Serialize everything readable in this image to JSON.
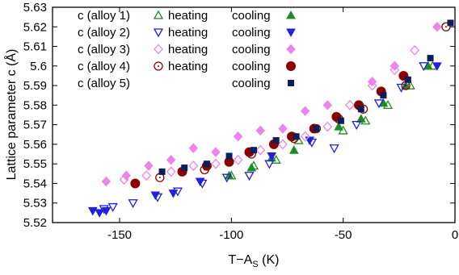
{
  "chart_data": {
    "type": "scatter",
    "xlabel": "T−A",
    "xlabel_sub": "S",
    "xlabel_unit": " (K)",
    "ylabel": "Lattice parameter c (Å)",
    "xlim": [
      -180,
      0
    ],
    "ylim": [
      5.52,
      5.63
    ],
    "xticks": [
      -150,
      -100,
      -50,
      0
    ],
    "yticks": [
      5.52,
      5.53,
      5.54,
      5.55,
      5.56,
      5.57,
      5.58,
      5.59,
      5.6,
      5.61,
      5.62,
      5.63
    ],
    "ytick_labels": [
      "5.52",
      "5.53",
      "5.54",
      "5.55",
      "5.56",
      "5.57",
      "5.58",
      "5.59",
      "5.6",
      "5.61",
      "5.62",
      "5.63"
    ],
    "grid": false,
    "legend_position": "top-left",
    "legend": [
      {
        "label": "c (alloy 1)",
        "heating": "heating",
        "cooling": "cooling"
      },
      {
        "label": "c (alloy 2)",
        "heating": "heating",
        "cooling": "cooling"
      },
      {
        "label": "c (alloy 3)",
        "heating": "heating",
        "cooling": "cooling"
      },
      {
        "label": "c (alloy 4)",
        "heating": "heating",
        "cooling": "cooling"
      },
      {
        "label": "c (alloy 5)",
        "heating": "",
        "cooling": "cooling"
      }
    ],
    "series": [
      {
        "name": "c (alloy 1) heating",
        "marker": "triangle-up",
        "filled": false,
        "color": "#1f8c1f",
        "points": [
          [
            -10,
            5.6
          ],
          [
            -20,
            5.59
          ],
          [
            -30,
            5.58
          ],
          [
            -40,
            5.572
          ],
          [
            -50,
            5.567
          ],
          [
            -70,
            5.562
          ],
          [
            -80,
            5.552
          ],
          [
            -90,
            5.549
          ],
          [
            -100,
            5.544
          ]
        ]
      },
      {
        "name": "c (alloy 1) cooling",
        "marker": "triangle-up",
        "filled": true,
        "color": "#1f8c1f",
        "points": [
          [
            -12,
            5.6
          ],
          [
            -22,
            5.59
          ],
          [
            -32,
            5.581
          ],
          [
            -42,
            5.573
          ],
          [
            -52,
            5.569
          ],
          [
            -72,
            5.557
          ],
          [
            -82,
            5.553
          ],
          [
            -91,
            5.548
          ],
          [
            -101,
            5.544
          ]
        ]
      },
      {
        "name": "c (alloy 2) heating",
        "marker": "triangle-down",
        "filled": false,
        "color": "#1f1fe0",
        "points": [
          [
            -14,
            5.6
          ],
          [
            -24,
            5.589
          ],
          [
            -34,
            5.581
          ],
          [
            -44,
            5.57
          ],
          [
            -54,
            5.558
          ],
          [
            -64,
            5.561
          ],
          [
            -83,
            5.55
          ],
          [
            -92,
            5.544
          ],
          [
            -102,
            5.543
          ],
          [
            -113,
            5.54
          ],
          [
            -124,
            5.536
          ],
          [
            -133,
            5.533
          ],
          [
            -144,
            5.53
          ],
          [
            -153,
            5.528
          ],
          [
            -157,
            5.527
          ]
        ]
      },
      {
        "name": "c (alloy 2) cooling",
        "marker": "triangle-down",
        "filled": true,
        "color": "#1f1fe0",
        "points": [
          [
            -8,
            5.6
          ],
          [
            -65,
            5.562
          ],
          [
            -82,
            5.554
          ],
          [
            -114,
            5.541
          ],
          [
            -126,
            5.535
          ],
          [
            -134,
            5.534
          ],
          [
            -156,
            5.526
          ],
          [
            -159,
            5.525
          ],
          [
            -162,
            5.526
          ]
        ]
      },
      {
        "name": "c (alloy 3) heating",
        "marker": "diamond",
        "filled": false,
        "color": "#ee82ee",
        "points": [
          [
            -18,
            5.608
          ],
          [
            -27,
            5.598
          ],
          [
            -37,
            5.59
          ],
          [
            -47,
            5.58
          ],
          [
            -57,
            5.569
          ],
          [
            -67,
            5.564
          ],
          [
            -77,
            5.56
          ],
          [
            -87,
            5.557
          ],
          [
            -97,
            5.552
          ],
          [
            -107,
            5.55
          ],
          [
            -117,
            5.549
          ],
          [
            -127,
            5.546
          ],
          [
            -138,
            5.544
          ],
          [
            -148,
            5.542
          ]
        ]
      },
      {
        "name": "c (alloy 3) cooling",
        "marker": "diamond",
        "filled": true,
        "color": "#ee82ee",
        "points": [
          [
            -8,
            5.62
          ],
          [
            -27,
            5.6
          ],
          [
            -37,
            5.592
          ],
          [
            -57,
            5.58
          ],
          [
            -67,
            5.577
          ],
          [
            -77,
            5.568
          ],
          [
            -87,
            5.567
          ],
          [
            -97,
            5.564
          ],
          [
            -107,
            5.556
          ],
          [
            -117,
            5.558
          ],
          [
            -127,
            5.552
          ],
          [
            -137,
            5.549
          ],
          [
            -147,
            5.544
          ],
          [
            -156,
            5.541
          ]
        ]
      },
      {
        "name": "c (alloy 4) heating",
        "marker": "circle",
        "filled": false,
        "color": "#8b0000",
        "points": [
          [
            -4,
            5.62
          ],
          [
            -22,
            5.59
          ],
          [
            -41,
            5.578
          ],
          [
            -52,
            5.573
          ],
          [
            -62,
            5.568
          ],
          [
            -72,
            5.563
          ],
          [
            -91,
            5.555
          ],
          [
            -112,
            5.547
          ],
          [
            -132,
            5.543
          ]
        ]
      },
      {
        "name": "c (alloy 4) cooling",
        "marker": "circle",
        "filled": true,
        "color": "#8b0000",
        "points": [
          [
            -23,
            5.595
          ],
          [
            -33,
            5.587
          ],
          [
            -43,
            5.58
          ],
          [
            -53,
            5.574
          ],
          [
            -63,
            5.568
          ],
          [
            -73,
            5.564
          ],
          [
            -81,
            5.56
          ],
          [
            -92,
            5.556
          ],
          [
            -101,
            5.551
          ],
          [
            -111,
            5.549
          ],
          [
            -122,
            5.546
          ],
          [
            -143,
            5.54
          ]
        ]
      },
      {
        "name": "c (alloy 5) cooling",
        "marker": "square",
        "filled": true,
        "color": "#0a1f5c",
        "points": [
          [
            -2,
            5.622
          ],
          [
            -11,
            5.604
          ],
          [
            -21,
            5.593
          ],
          [
            -32,
            5.585
          ],
          [
            -42,
            5.578
          ],
          [
            -51,
            5.572
          ],
          [
            -62,
            5.568
          ],
          [
            -71,
            5.564
          ],
          [
            -80,
            5.562
          ],
          [
            -90,
            5.557
          ],
          [
            -101,
            5.554
          ],
          [
            -111,
            5.55
          ],
          [
            -121,
            5.548
          ],
          [
            -131,
            5.546
          ]
        ]
      }
    ]
  }
}
